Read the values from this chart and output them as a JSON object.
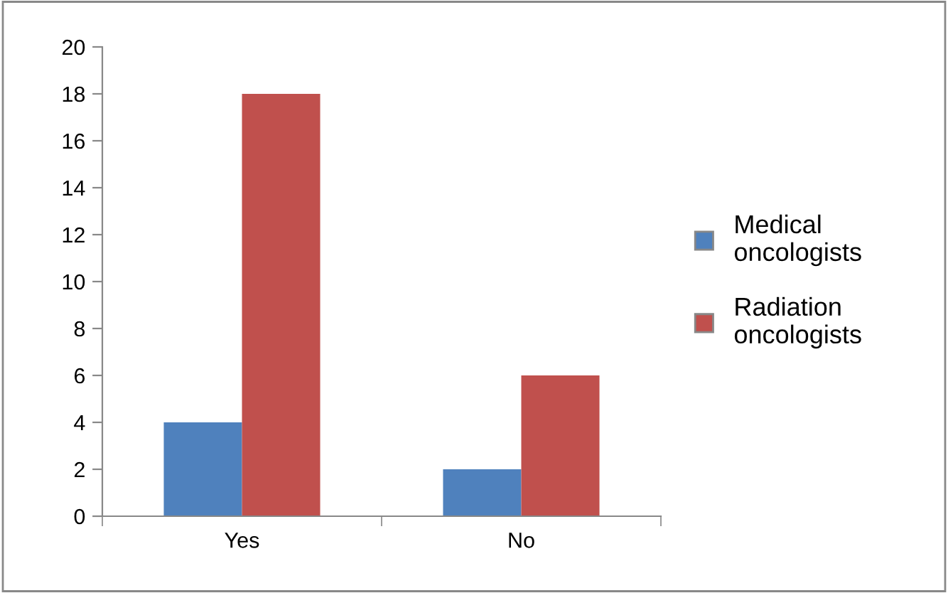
{
  "chart_data": {
    "type": "bar",
    "categories": [
      "Yes",
      "No"
    ],
    "series": [
      {
        "name": "Medical oncologists",
        "color": "#4f81bd",
        "values": [
          4,
          2
        ]
      },
      {
        "name": "Radiation oncologists",
        "color": "#c0504d",
        "values": [
          18,
          6
        ]
      }
    ],
    "ylim": [
      0,
      20
    ],
    "yticks": [
      0,
      2,
      4,
      6,
      8,
      10,
      12,
      14,
      16,
      18,
      20
    ],
    "grid": false,
    "legend": "right"
  }
}
